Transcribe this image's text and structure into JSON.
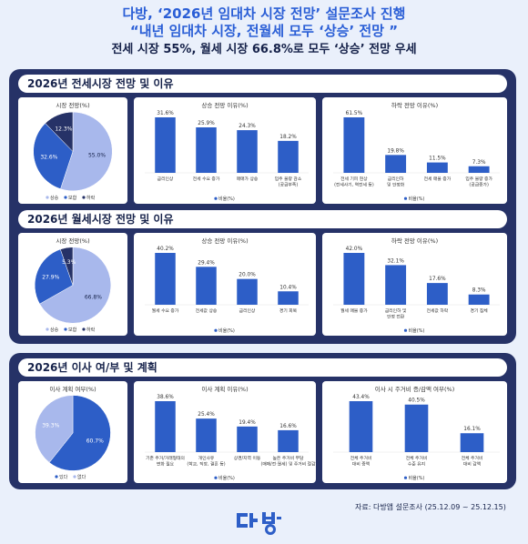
{
  "header": {
    "line1": "다방, ‘2026년 임대차 시장 전망’ 설문조사 진행",
    "line2": "“내년 임대차 시장, 전월세 모두 ‘상승’ 전망 ”",
    "line3": "전세 시장 55%, 월세 시장 66.8%로 모두 ‘상승’ 전망 우세"
  },
  "sections": [
    {
      "title": "2026년 전세시장 전망 및 이유"
    },
    {
      "title": "2026년 월세시장 전망 및 이유"
    },
    {
      "title": "2026년 이사 여/부 및 계획"
    }
  ],
  "colors": {
    "dark": "#263267",
    "blue": "#2d5ec7",
    "mid": "#6b88dd",
    "light": "#a8b8ec",
    "navy": "#16224a"
  },
  "source": "자료: 다방앱 설문조사 (25.12.09 ~ 25.12.15)",
  "logo": "다방",
  "chart_data": [
    {
      "type": "pie",
      "title": "시장 전망(%)",
      "labels": [
        "상승",
        "보합",
        "하락"
      ],
      "values": [
        55.0,
        32.6,
        12.3
      ],
      "colors": [
        "#a8b8ec",
        "#2d5ec7",
        "#263267"
      ],
      "legend": "bottom"
    },
    {
      "type": "bar",
      "title": "상승 전망 이유(%)",
      "categories": [
        "금리인상",
        "전세 수요 증가",
        "매매가 상승",
        "입주 물량 감소(공급부족)"
      ],
      "values": [
        31.6,
        25.9,
        24.3,
        18.2
      ],
      "legend_label": "비율(%)"
    },
    {
      "type": "bar",
      "title": "하락 전망 이유(%)",
      "categories": [
        "전세 기피 현상 (전세사기, 역전세 등)",
        "금리인하 및 안정화",
        "전세 매물 증가",
        "입주 물량 증가 (공급증가)"
      ],
      "values": [
        61.5,
        19.8,
        11.5,
        7.3
      ],
      "legend_label": "비율(%)"
    },
    {
      "type": "pie",
      "title": "시장 전망(%)",
      "labels": [
        "상승",
        "보합",
        "하락"
      ],
      "values": [
        66.8,
        27.9,
        5.3
      ],
      "colors": [
        "#a8b8ec",
        "#2d5ec7",
        "#263267"
      ],
      "legend": "bottom"
    },
    {
      "type": "bar",
      "title": "상승 전망 이유(%)",
      "categories": [
        "월세 수요 증가",
        "전세값 상승",
        "금리인상",
        "경기 회복"
      ],
      "values": [
        40.2,
        29.4,
        20.0,
        10.4
      ],
      "legend_label": "비율(%)"
    },
    {
      "type": "bar",
      "title": "하락 전망 이유(%)",
      "categories": [
        "월세 매물 증가",
        "금리인하 및 안정 전환",
        "전세값 하락",
        "경기 침체"
      ],
      "values": [
        42.0,
        32.1,
        17.6,
        8.3
      ],
      "legend_label": "비율(%)"
    },
    {
      "type": "pie",
      "title": "이사 계획 여부(%)",
      "labels": [
        "있다",
        "없다"
      ],
      "values": [
        60.7,
        39.3
      ],
      "colors": [
        "#2d5ec7",
        "#a8b8ec"
      ],
      "legend": "bottom"
    },
    {
      "type": "bar",
      "title": "이사 계획 이유(%)",
      "categories": [
        "기존 주거/거래형태의 변화 필요",
        "개인사유 (학교, 직장, 결혼 등)",
        "상경/지역 이동",
        "높은 주거비 부담(매매/전·월세) 및 주거비 절감"
      ],
      "values": [
        38.6,
        25.4,
        19.4,
        16.6
      ],
      "legend_label": "비율(%)"
    },
    {
      "type": "bar",
      "title": "이사 시 주거비 증/감액 여부(%)",
      "categories": [
        "전체 주거비 대비 증액",
        "전체 주거비 수준 유지",
        "전체 주거비 대비 감액"
      ],
      "values": [
        43.4,
        40.5,
        16.1
      ],
      "legend_label": "비율(%)"
    }
  ]
}
